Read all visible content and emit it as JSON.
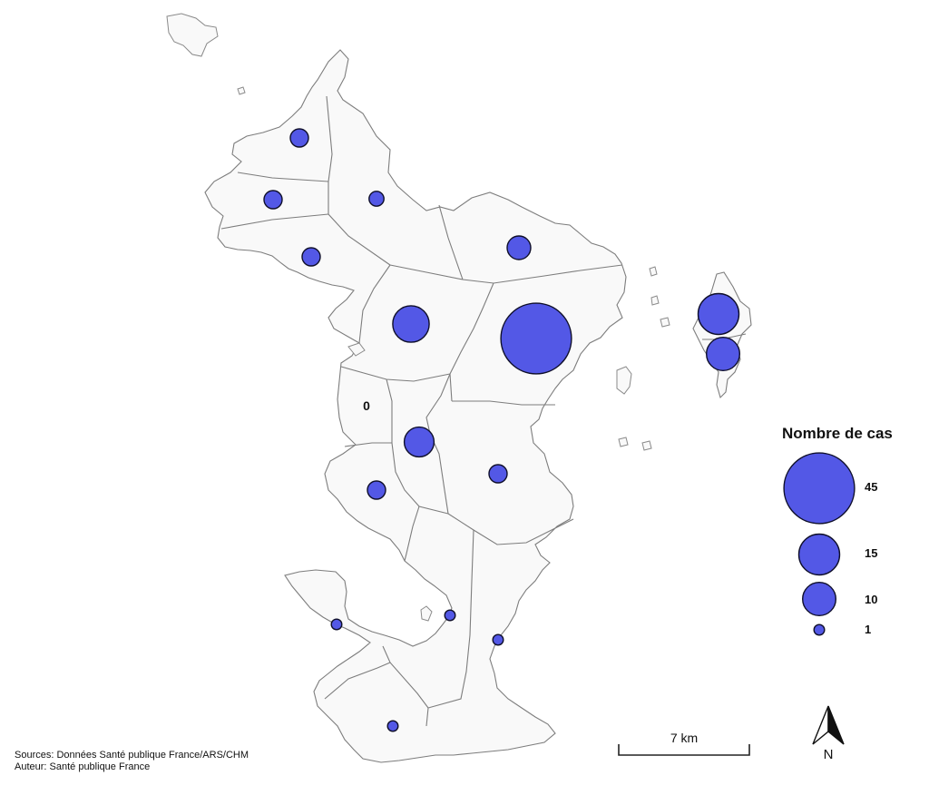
{
  "colors": {
    "bubble": "#5358e6",
    "bubble_stroke": "#0f0f2a",
    "land": "#f9f9f9",
    "border": "#7d7d7d"
  },
  "communes": [
    {
      "cases": 3
    },
    {
      "cases": 3
    },
    {
      "cases": 2
    },
    {
      "cases": 3
    },
    {
      "cases": 5
    },
    {
      "cases": 12
    },
    {
      "cases": 45
    },
    {
      "cases": 15
    },
    {
      "cases": 10
    },
    {
      "cases": 0,
      "label": "0"
    },
    {
      "cases": 8
    },
    {
      "cases": 3
    },
    {
      "cases": 3
    },
    {
      "cases": 1
    },
    {
      "cases": 1
    },
    {
      "cases": 1
    },
    {
      "cases": 1
    }
  ],
  "legend": {
    "title": "Nombre de cas",
    "entries": [
      {
        "value": 45,
        "label": "45"
      },
      {
        "value": 15,
        "label": "15"
      },
      {
        "value": 10,
        "label": "10"
      },
      {
        "value": 1,
        "label": "1"
      }
    ]
  },
  "scale_bar": {
    "label": "7 km"
  },
  "north_arrow": {
    "label": "N",
    "icon": "north-arrow-icon"
  },
  "credits": {
    "sources": "Sources: Données Santé publique France/ARS/CHM",
    "author": "Auteur: Santé publique France"
  }
}
